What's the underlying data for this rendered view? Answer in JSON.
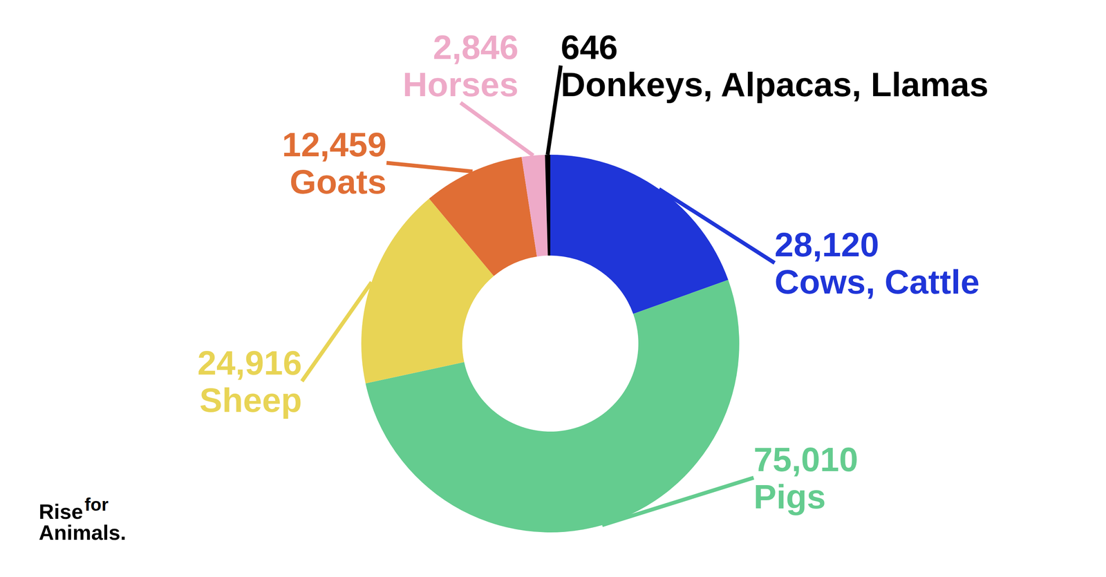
{
  "chart_data": {
    "type": "donut",
    "categories": [
      "Cows, Cattle",
      "Pigs",
      "Sheep",
      "Goats",
      "Horses",
      "Donkeys, Alpacas, Llamas"
    ],
    "values": [
      28120,
      75010,
      24916,
      12459,
      2846,
      646
    ],
    "value_labels": [
      "28,120",
      "75,010",
      "24,916",
      "12,459",
      "2,846",
      "646"
    ],
    "colors": [
      "#1f35d8",
      "#64cc8f",
      "#e8d455",
      "#e06e35",
      "#eeaac8",
      "#000000"
    ],
    "data_labels": true
  },
  "logo": [
    "Rise",
    "for",
    "Animals."
  ]
}
